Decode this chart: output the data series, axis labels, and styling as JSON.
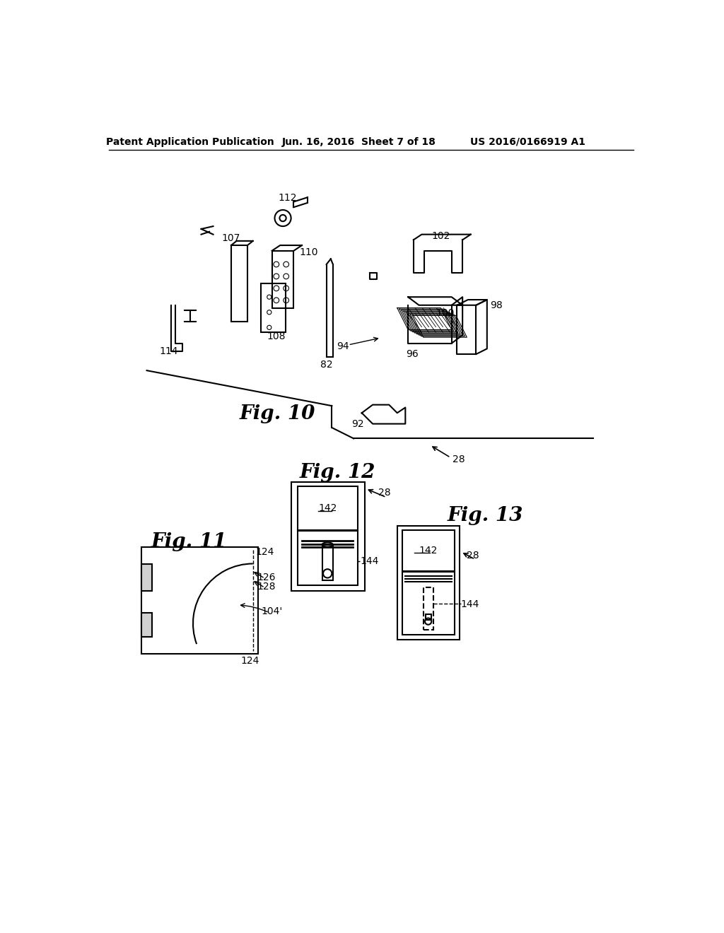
{
  "bg_color": "#ffffff",
  "header_left": "Patent Application Publication",
  "header_center": "Jun. 16, 2016  Sheet 7 of 18",
  "header_right": "US 2016/0166919 A1",
  "fig10_label": "Fig. 10",
  "fig11_label": "Fig. 11",
  "fig12_label": "Fig. 12",
  "fig13_label": "Fig. 13",
  "line_color": "#000000",
  "lw": 1.5,
  "thin_lw": 1.0
}
